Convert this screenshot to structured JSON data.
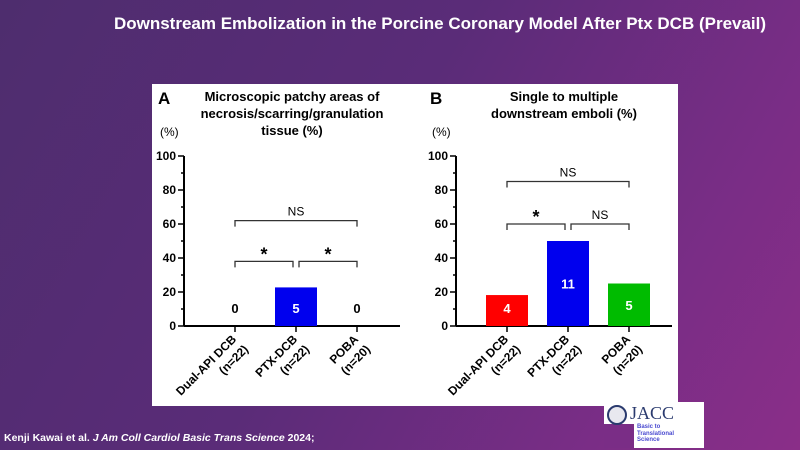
{
  "slide": {
    "title": "Downstream Embolization in the Porcine Coronary Model After Ptx DCB (Prevail)",
    "citation_authors": "Kenji Kawai et al.",
    "citation_journal": "J Am Coll Cardiol Basic Trans Science",
    "citation_year": "2024;",
    "logo_name": "JACC",
    "logo_subtitle": [
      "Basic to",
      "Translational",
      "Science"
    ]
  },
  "chart_data": [
    {
      "type": "bar",
      "panel": "A",
      "title_lines": [
        "Microscopic patchy areas of",
        "necrosis/scarring/granulation",
        "tissue (%)"
      ],
      "ylabel": "(%)",
      "ylim": [
        0,
        100
      ],
      "yticks": [
        0,
        20,
        40,
        60,
        80,
        100
      ],
      "categories": [
        [
          "Dual-API DCB",
          "(n=22)"
        ],
        [
          "PTX-DCB",
          "(n=22)"
        ],
        [
          "POBA",
          "(n=20)"
        ]
      ],
      "values": [
        0,
        22.7,
        0
      ],
      "counts": [
        "0",
        "5",
        "0"
      ],
      "colors": [
        "#ff0000",
        "#0000ee",
        "#00bb00"
      ],
      "comparisons": [
        {
          "from": 0,
          "to": 2,
          "label": "NS",
          "level": 62
        },
        {
          "from": 0,
          "to": 1,
          "label": "*",
          "level": 38
        },
        {
          "from": 1,
          "to": 2,
          "label": "*",
          "level": 38
        }
      ]
    },
    {
      "type": "bar",
      "panel": "B",
      "title_lines": [
        "Single to multiple",
        "downstream emboli (%)"
      ],
      "ylabel": "(%)",
      "ylim": [
        0,
        100
      ],
      "yticks": [
        0,
        20,
        40,
        60,
        80,
        100
      ],
      "categories": [
        [
          "Dual-API DCB",
          "(n=22)"
        ],
        [
          "PTX-DCB",
          "(n=22)"
        ],
        [
          "POBA",
          "(n=20)"
        ]
      ],
      "values": [
        18.2,
        50.0,
        25.0
      ],
      "counts": [
        "4",
        "11",
        "5"
      ],
      "colors": [
        "#ff0000",
        "#0000ee",
        "#00bb00"
      ],
      "comparisons": [
        {
          "from": 0,
          "to": 2,
          "label": "NS",
          "level": 85
        },
        {
          "from": 0,
          "to": 1,
          "label": "*",
          "level": 60
        },
        {
          "from": 1,
          "to": 2,
          "label": "NS",
          "level": 60
        }
      ]
    }
  ]
}
